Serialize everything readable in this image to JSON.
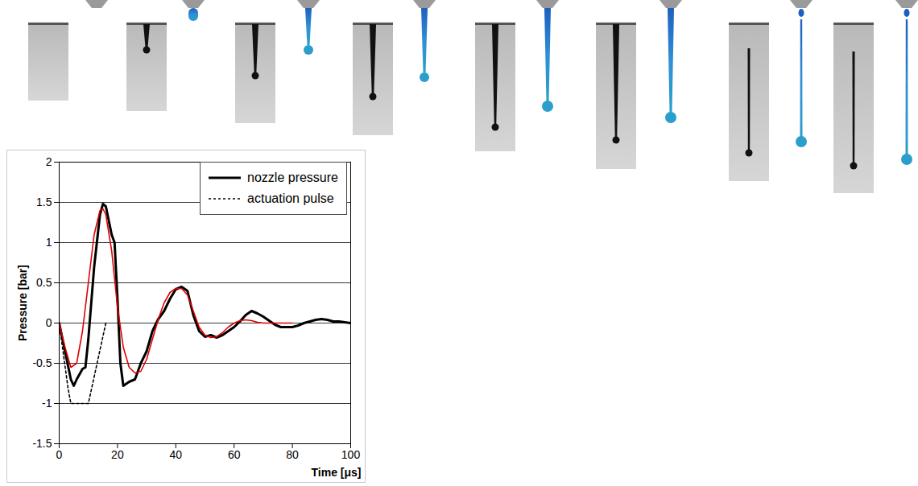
{
  "chart_data": {
    "type": "line",
    "x_label": "Time [μs]",
    "y_label": "Pressure [bar]",
    "xlim": [
      0,
      100
    ],
    "xticks": [
      0,
      20,
      40,
      60,
      80,
      100
    ],
    "ylim": [
      -1.5,
      2
    ],
    "yticks": [
      -1.5,
      -1,
      -0.5,
      0,
      0.5,
      1,
      1.5,
      2
    ],
    "grid": true,
    "legend": "top-right",
    "series": [
      {
        "name": "nozzle pressure",
        "color": "#000000",
        "line_style": "solid",
        "x": [
          0,
          2,
          4,
          5,
          6,
          8,
          9,
          10,
          12,
          14,
          15,
          16,
          18,
          19,
          20,
          21,
          22,
          24,
          26,
          28,
          30,
          32,
          34,
          36,
          38,
          40,
          42,
          44,
          46,
          48,
          50,
          52,
          54,
          56,
          58,
          60,
          62,
          64,
          66,
          68,
          70,
          72,
          74,
          76,
          78,
          80,
          82,
          84,
          86,
          88,
          90,
          92,
          94,
          96,
          98,
          100
        ],
        "values": [
          0,
          -0.35,
          -0.7,
          -0.78,
          -0.7,
          -0.57,
          -0.55,
          -0.2,
          0.7,
          1.35,
          1.48,
          1.45,
          1.1,
          1.0,
          0.3,
          -0.5,
          -0.78,
          -0.73,
          -0.7,
          -0.5,
          -0.35,
          -0.1,
          0.05,
          0.15,
          0.3,
          0.42,
          0.45,
          0.4,
          0.1,
          -0.1,
          -0.17,
          -0.15,
          -0.18,
          -0.15,
          -0.1,
          -0.05,
          0.02,
          0.1,
          0.15,
          0.12,
          0.08,
          0.03,
          -0.02,
          -0.05,
          -0.05,
          -0.05,
          -0.03,
          0,
          0.02,
          0.04,
          0.05,
          0.04,
          0.02,
          0.02,
          0.01,
          0
        ]
      },
      {
        "name": "actuation pulse",
        "color": "#000000",
        "line_style": "dotted",
        "x": [
          0,
          3,
          4,
          10,
          16
        ],
        "values": [
          0,
          -0.8,
          -1,
          -1,
          0
        ]
      },
      {
        "name": null,
        "color": "#e00000",
        "line_style": "solid",
        "x": [
          0,
          2,
          4,
          6,
          8,
          10,
          12,
          14,
          15,
          16,
          18,
          20,
          22,
          24,
          26,
          28,
          30,
          32,
          34,
          36,
          38,
          40,
          42,
          44,
          46,
          48,
          50,
          52,
          54,
          56,
          58,
          60,
          62,
          64,
          66,
          68,
          70,
          80
        ],
        "values": [
          0,
          -0.3,
          -0.55,
          -0.5,
          -0.1,
          0.5,
          1.1,
          1.4,
          1.42,
          1.35,
          0.9,
          0.2,
          -0.3,
          -0.55,
          -0.62,
          -0.6,
          -0.45,
          -0.2,
          0.05,
          0.25,
          0.38,
          0.43,
          0.43,
          0.35,
          0.15,
          -0.05,
          -0.15,
          -0.18,
          -0.17,
          -0.12,
          -0.05,
          0,
          0.03,
          0.04,
          0.03,
          0.01,
          0,
          0
        ]
      }
    ]
  }
}
